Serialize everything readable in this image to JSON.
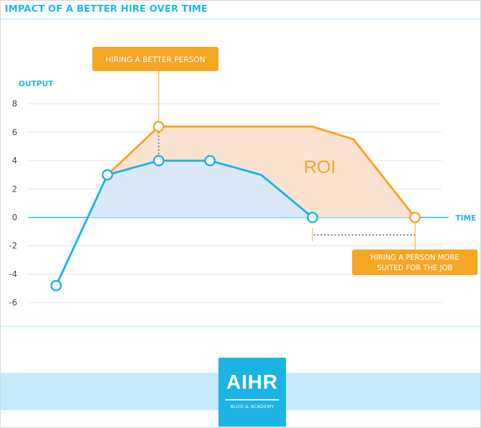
{
  "header": {
    "title": "IMPACT OF A BETTER HIRE OVER TIME"
  },
  "chart_data": {
    "type": "line",
    "ylabel": "OUTPUT",
    "xlabel": "TIME",
    "ylim": [
      -6,
      8
    ],
    "yticks": [
      8,
      6,
      4,
      2,
      0,
      -2,
      -4,
      -6
    ],
    "grid": true,
    "legend": "none",
    "series": [
      {
        "color": "#1ab4e8",
        "points": [
          [
            0.0,
            -4.8
          ],
          [
            1.0,
            3.0
          ],
          [
            2.0,
            4.0
          ],
          [
            3.0,
            4.0
          ],
          [
            4.0,
            3.0
          ],
          [
            5.0,
            0.0
          ]
        ],
        "markers": [
          0,
          1,
          2,
          3,
          5
        ]
      },
      {
        "color": "#f5a623",
        "points": [
          [
            1.0,
            3.0
          ],
          [
            2.0,
            6.4
          ],
          [
            5.0,
            6.4
          ],
          [
            5.8,
            5.5
          ],
          [
            7.0,
            0.0
          ]
        ],
        "markers": [
          1,
          4
        ]
      }
    ],
    "fills": {
      "between_color": "#fbe3d1",
      "under_color": "#dbe9f6"
    },
    "annotations": [
      {
        "label": "ROI",
        "color": "#f5a623"
      },
      {
        "label": "HIRING A BETTER PERSON",
        "color": "#f5a623"
      },
      {
        "label": "HIRING A PERSON MORE SUITED FOR THE JOB",
        "color": "#f5a623"
      }
    ]
  },
  "footer": {
    "logo_text": "AIHR",
    "logo_sub": "BLOG & ACADEMY"
  }
}
